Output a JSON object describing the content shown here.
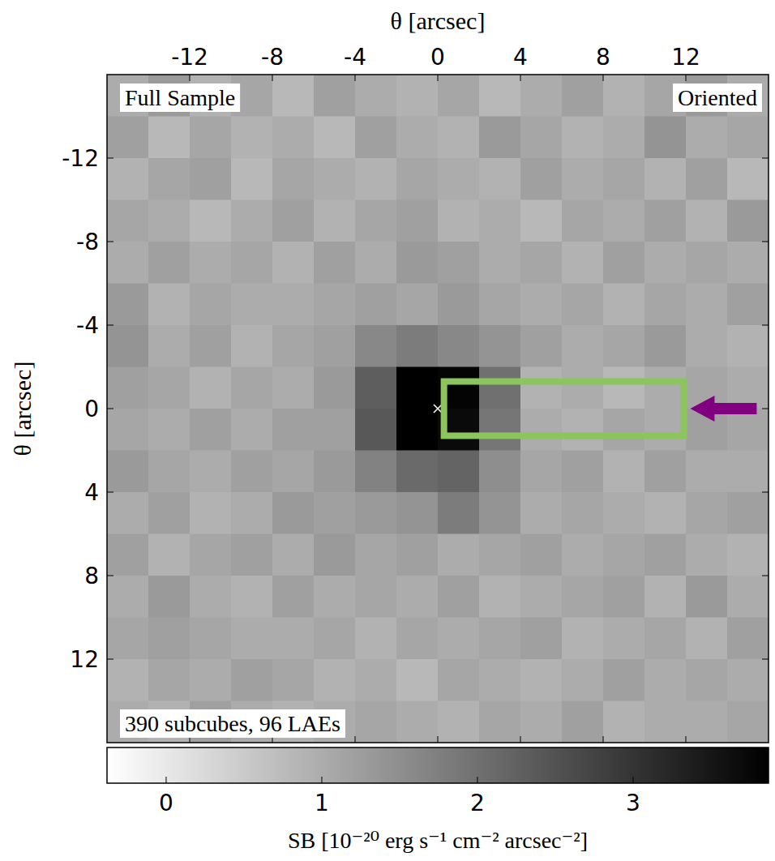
{
  "chart_data": {
    "type": "heatmap",
    "top_left_label": "Full Sample",
    "top_right_label": "Oriented",
    "bottom_left_label": "390 subcubes, 96 LAEs",
    "x_label": "θ [arcsec]",
    "y_label": "θ [arcsec]",
    "xlim": [
      -16,
      16
    ],
    "ylim": [
      16,
      -16
    ],
    "xticks": [
      -12,
      -8,
      -4,
      0,
      4,
      8,
      12
    ],
    "yticks": [
      -12,
      -8,
      -4,
      0,
      4,
      8,
      12
    ],
    "marker_position": [
      0,
      0
    ],
    "highlight_box": {
      "x": [
        0.3,
        11.9
      ],
      "y": [
        -1.3,
        1.3
      ]
    },
    "cells": [
      [
        1.0,
        1.3,
        0.9,
        1.1,
        0.8,
        1.2,
        1.0,
        0.9,
        1.1,
        0.8,
        1.0,
        1.2,
        0.9,
        1.1,
        1.3,
        1.0
      ],
      [
        1.2,
        0.8,
        1.1,
        0.9,
        1.0,
        0.8,
        1.2,
        1.0,
        0.9,
        1.3,
        1.1,
        0.9,
        1.0,
        1.4,
        1.0,
        1.1
      ],
      [
        0.9,
        1.1,
        1.2,
        0.8,
        1.1,
        1.0,
        0.9,
        1.1,
        1.0,
        0.9,
        1.2,
        1.0,
        1.1,
        0.9,
        1.2,
        0.8
      ],
      [
        1.1,
        1.0,
        0.8,
        1.0,
        1.2,
        0.9,
        1.1,
        1.2,
        0.9,
        1.0,
        0.8,
        1.1,
        1.0,
        1.2,
        0.9,
        1.3
      ],
      [
        1.0,
        1.2,
        1.0,
        1.1,
        0.9,
        1.2,
        1.0,
        1.3,
        1.2,
        1.0,
        1.1,
        0.9,
        1.2,
        1.0,
        1.1,
        1.0
      ],
      [
        1.3,
        0.9,
        1.1,
        1.0,
        1.0,
        1.1,
        1.2,
        1.1,
        1.3,
        1.1,
        1.0,
        1.1,
        0.9,
        1.1,
        1.0,
        1.2
      ],
      [
        1.4,
        1.0,
        1.2,
        0.9,
        1.1,
        1.2,
        1.6,
        1.8,
        1.6,
        1.4,
        1.2,
        1.0,
        1.1,
        1.3,
        1.0,
        0.9
      ],
      [
        1.2,
        1.1,
        0.9,
        1.1,
        1.0,
        1.3,
        2.3,
        3.9,
        3.8,
        2.0,
        0.9,
        1.0,
        0.8,
        1.0,
        1.1,
        1.0
      ],
      [
        1.1,
        1.0,
        1.2,
        1.0,
        1.2,
        1.2,
        2.4,
        3.9,
        3.7,
        1.9,
        1.0,
        0.9,
        1.1,
        1.0,
        1.2,
        1.1
      ],
      [
        1.3,
        1.1,
        1.0,
        1.2,
        1.1,
        1.3,
        1.7,
        2.1,
        2.2,
        1.5,
        1.1,
        1.2,
        0.9,
        1.2,
        1.0,
        1.0
      ],
      [
        1.0,
        1.2,
        0.9,
        1.0,
        1.3,
        1.2,
        1.3,
        1.4,
        1.8,
        1.4,
        1.0,
        1.1,
        1.0,
        0.9,
        1.1,
        1.2
      ],
      [
        1.2,
        0.9,
        1.1,
        1.2,
        1.0,
        1.3,
        1.1,
        1.2,
        1.0,
        1.1,
        1.2,
        1.0,
        1.1,
        1.2,
        1.0,
        0.9
      ],
      [
        1.0,
        1.3,
        1.0,
        0.9,
        1.2,
        1.0,
        1.1,
        1.0,
        1.2,
        0.9,
        1.0,
        1.1,
        1.2,
        0.9,
        1.3,
        1.0
      ],
      [
        1.1,
        1.2,
        1.1,
        1.0,
        1.0,
        1.1,
        0.9,
        1.1,
        1.0,
        1.1,
        1.2,
        0.9,
        1.0,
        1.1,
        0.9,
        1.2
      ],
      [
        0.9,
        1.1,
        1.0,
        1.2,
        1.1,
        0.9,
        1.0,
        0.8,
        1.1,
        1.0,
        0.9,
        1.0,
        1.2,
        1.0,
        1.1,
        1.0
      ],
      [
        1.0,
        0.9,
        1.2,
        1.0,
        0.9,
        1.0,
        1.1,
        1.0,
        0.9,
        1.1,
        1.0,
        1.2,
        0.9,
        1.0,
        1.0,
        1.1
      ]
    ],
    "colorbar_label": "SB [10⁻²⁰ erg s⁻¹ cm⁻² arcsec⁻²]",
    "colorbar_range": [
      -0.38,
      3.87
    ],
    "colorbar_ticks": [
      0,
      1,
      2,
      3
    ]
  }
}
